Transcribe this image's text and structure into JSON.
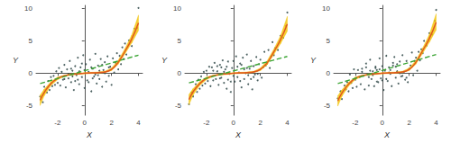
{
  "chart_data": [
    {
      "type": "scatter",
      "xlabel": "X",
      "ylabel": "Y",
      "xlim": [
        -3.6,
        4.3
      ],
      "ylim": [
        -6.5,
        10.5
      ],
      "xticks": [
        -2,
        0,
        2,
        4
      ],
      "yticks": [
        -5,
        0,
        5,
        10
      ],
      "series": [
        {
          "type": "scatter",
          "color": "#2e4747",
          "marker": "circle",
          "x": [
            -3.3,
            -3.1,
            -3.0,
            -2.8,
            -2.7,
            -2.6,
            -2.5,
            -2.4,
            -2.3,
            -2.2,
            -2.1,
            -2.0,
            -1.9,
            -1.8,
            -1.7,
            -1.6,
            -1.5,
            -1.4,
            -1.3,
            -1.2,
            -1.1,
            -1.0,
            -0.9,
            -0.8,
            -0.7,
            -0.6,
            -0.5,
            -0.4,
            -0.3,
            -0.2,
            -0.1,
            0.0,
            0.1,
            0.2,
            0.3,
            0.4,
            0.5,
            0.6,
            0.7,
            0.8,
            0.9,
            1.0,
            1.1,
            1.2,
            1.3,
            1.4,
            1.5,
            1.6,
            1.7,
            1.8,
            1.9,
            2.0,
            2.1,
            2.2,
            2.3,
            2.4,
            2.5,
            2.6,
            2.7,
            2.8,
            2.9,
            3.0,
            3.1,
            3.3,
            3.5,
            3.7,
            3.9,
            4.0,
            -1.5,
            -1.0,
            -0.5,
            0.0,
            0.5,
            1.0,
            1.5,
            -1.2,
            -0.7,
            -0.2,
            0.3,
            0.8,
            1.3,
            1.8,
            -0.9,
            -0.4,
            0.6,
            1.1
          ],
          "values": [
            -3.6,
            -4.5,
            -2.1,
            -3.0,
            -1.2,
            -2.6,
            -0.6,
            -2.0,
            -0.4,
            -1.8,
            0.3,
            -1.5,
            0.8,
            -1.9,
            0.2,
            -1.0,
            1.3,
            -2.2,
            0.6,
            -0.8,
            1.9,
            -1.4,
            0.4,
            -2.6,
            1.1,
            -0.3,
            2.4,
            -1.7,
            0.9,
            -0.6,
            2.8,
            -2.3,
            1.4,
            -1.1,
            0.2,
            2.1,
            -2.8,
            0.7,
            -0.5,
            3.0,
            -1.6,
            1.2,
            -0.9,
            2.2,
            -2.1,
            0.5,
            1.7,
            -1.3,
            2.6,
            -0.4,
            1.0,
            -1.8,
            2.3,
            0.1,
            1.6,
            3.1,
            0.6,
            2.7,
            1.4,
            4.0,
            2.2,
            4.6,
            2.9,
            5.1,
            4.2,
            6.9,
            7.0,
            10.1,
            -0.9,
            0.7,
            -1.0,
            0.5,
            0.9,
            -0.3,
            0.0,
            -0.1,
            -1.2,
            1.5,
            -1.4,
            -0.2,
            1.3,
            0.9,
            -0.5,
            0.3,
            -0.8,
            0.4
          ]
        },
        {
          "type": "band",
          "color": "#f2c200",
          "x": [
            -3.3,
            -3.0,
            -2.5,
            -2.0,
            -1.5,
            -1.0,
            -0.5,
            0.0,
            0.5,
            1.0,
            1.5,
            2.0,
            2.5,
            3.0,
            3.5,
            4.0
          ],
          "lower": [
            -5.0,
            -3.5,
            -1.9,
            -1.0,
            -0.5,
            -0.3,
            -0.2,
            -0.1,
            -0.05,
            0.0,
            0.1,
            0.4,
            1.4,
            3.0,
            4.7,
            6.6
          ],
          "upper": [
            -3.4,
            -2.5,
            -1.3,
            -0.6,
            -0.3,
            -0.1,
            0.0,
            0.1,
            0.15,
            0.2,
            0.3,
            0.8,
            2.0,
            3.8,
            5.9,
            9.0
          ]
        },
        {
          "type": "line",
          "color": "#e0531f",
          "line_style": "solid",
          "x": [
            -3.3,
            -3.0,
            -2.5,
            -2.0,
            -1.5,
            -1.0,
            -0.5,
            0.0,
            0.5,
            1.0,
            1.5,
            2.0,
            2.5,
            3.0,
            3.5,
            4.0
          ],
          "values": [
            -4.2,
            -3.0,
            -1.6,
            -0.8,
            -0.4,
            -0.2,
            -0.1,
            0.0,
            0.05,
            0.1,
            0.2,
            0.6,
            1.7,
            3.4,
            5.3,
            7.8
          ]
        },
        {
          "type": "line",
          "color": "#3ca535",
          "line_style": "dashed",
          "x": [
            -3.3,
            4.0
          ],
          "values": [
            -1.6,
            2.8
          ]
        }
      ]
    },
    {
      "type": "scatter",
      "xlabel": "X",
      "ylabel": "Y",
      "xlim": [
        -3.6,
        4.3
      ],
      "ylim": [
        -6.5,
        10.5
      ],
      "xticks": [
        -2,
        0,
        2,
        4
      ],
      "yticks": [
        -5,
        0,
        5,
        10
      ],
      "series": [
        {
          "type": "scatter",
          "color": "#2e4747",
          "marker": "circle",
          "x": [
            -3.3,
            -3.1,
            -3.0,
            -2.8,
            -2.7,
            -2.6,
            -2.5,
            -2.4,
            -2.3,
            -2.2,
            -2.1,
            -2.0,
            -1.9,
            -1.8,
            -1.7,
            -1.6,
            -1.5,
            -1.4,
            -1.3,
            -1.2,
            -1.1,
            -1.0,
            -0.9,
            -0.8,
            -0.7,
            -0.6,
            -0.5,
            -0.4,
            -0.3,
            -0.2,
            -0.1,
            0.0,
            0.1,
            0.2,
            0.3,
            0.4,
            0.5,
            0.6,
            0.7,
            0.8,
            0.9,
            1.0,
            1.1,
            1.2,
            1.3,
            1.4,
            1.5,
            1.6,
            1.7,
            1.8,
            1.9,
            2.0,
            2.1,
            2.2,
            2.3,
            2.4,
            2.5,
            2.6,
            2.7,
            2.8,
            2.9,
            3.0,
            3.1,
            3.3,
            3.5,
            3.7,
            3.9,
            4.0,
            -1.5,
            -1.0,
            -0.5,
            0.0,
            0.5,
            1.0,
            1.5,
            -1.2,
            -0.7,
            -0.2,
            0.3,
            0.8,
            1.3,
            1.8,
            -0.9,
            -0.4,
            0.6,
            1.1
          ],
          "values": [
            -4.8,
            -3.0,
            -3.6,
            -1.7,
            -2.9,
            -1.0,
            -2.4,
            -0.5,
            -1.9,
            0.2,
            -1.6,
            0.4,
            -1.2,
            1.0,
            -2.0,
            0.9,
            -1.1,
            1.6,
            -0.9,
            0.3,
            -1.8,
            1.3,
            -0.7,
            2.0,
            -1.5,
            0.6,
            -2.4,
            1.8,
            -0.1,
            -2.9,
            0.8,
            1.9,
            -1.3,
            2.6,
            -0.6,
            0.1,
            1.5,
            -2.2,
            2.4,
            -0.9,
            0.0,
            2.9,
            -1.7,
            0.7,
            1.9,
            -2.5,
            1.1,
            -0.2,
            2.5,
            -1.1,
            1.4,
            2.1,
            -0.7,
            0.9,
            3.3,
            1.2,
            1.5,
            3.6,
            0.8,
            2.6,
            4.8,
            2.8,
            3.9,
            3.6,
            5.8,
            5.5,
            7.3,
            9.4,
            0.4,
            -0.8,
            1.0,
            -0.4,
            -1.2,
            0.8,
            -0.6,
            1.1,
            0.2,
            -1.3,
            1.0,
            0.6,
            -0.9,
            -0.1,
            0.9,
            -1.0,
            1.3,
            -0.3
          ]
        },
        {
          "type": "band",
          "color": "#f2c200",
          "x": [
            -3.3,
            -3.0,
            -2.5,
            -2.0,
            -1.5,
            -1.0,
            -0.5,
            0.0,
            0.5,
            1.0,
            1.5,
            2.0,
            2.5,
            3.0,
            3.5,
            4.0
          ],
          "lower": [
            -4.9,
            -3.4,
            -1.9,
            -1.0,
            -0.5,
            -0.3,
            -0.2,
            -0.1,
            -0.05,
            0.0,
            0.1,
            0.4,
            1.3,
            2.9,
            4.6,
            6.5
          ],
          "upper": [
            -3.3,
            -2.4,
            -1.3,
            -0.6,
            -0.3,
            -0.1,
            0.0,
            0.1,
            0.15,
            0.2,
            0.3,
            0.8,
            1.9,
            3.7,
            5.8,
            8.8
          ]
        },
        {
          "type": "line",
          "color": "#e0531f",
          "line_style": "solid",
          "x": [
            -3.3,
            -3.0,
            -2.5,
            -2.0,
            -1.5,
            -1.0,
            -0.5,
            0.0,
            0.5,
            1.0,
            1.5,
            2.0,
            2.5,
            3.0,
            3.5,
            4.0
          ],
          "values": [
            -4.1,
            -2.9,
            -1.6,
            -0.8,
            -0.4,
            -0.2,
            -0.1,
            0.0,
            0.05,
            0.1,
            0.2,
            0.6,
            1.6,
            3.3,
            5.2,
            7.6
          ]
        },
        {
          "type": "line",
          "color": "#3ca535",
          "line_style": "dashed",
          "x": [
            -3.3,
            4.0
          ],
          "values": [
            -1.5,
            2.6
          ]
        }
      ]
    },
    {
      "type": "scatter",
      "xlabel": "X",
      "ylabel": "Y",
      "xlim": [
        -3.6,
        4.3
      ],
      "ylim": [
        -6.5,
        10.5
      ],
      "xticks": [
        -2,
        0,
        2,
        4
      ],
      "yticks": [
        -5,
        0,
        5,
        10
      ],
      "series": [
        {
          "type": "scatter",
          "color": "#2e4747",
          "marker": "circle",
          "x": [
            -3.3,
            -3.1,
            -3.0,
            -2.8,
            -2.7,
            -2.6,
            -2.5,
            -2.4,
            -2.3,
            -2.2,
            -2.1,
            -2.0,
            -1.9,
            -1.8,
            -1.7,
            -1.6,
            -1.5,
            -1.4,
            -1.3,
            -1.2,
            -1.1,
            -1.0,
            -0.9,
            -0.8,
            -0.7,
            -0.6,
            -0.5,
            -0.4,
            -0.3,
            -0.2,
            -0.1,
            0.0,
            0.1,
            0.2,
            0.3,
            0.4,
            0.5,
            0.6,
            0.7,
            0.8,
            0.9,
            1.0,
            1.1,
            1.2,
            1.3,
            1.4,
            1.5,
            1.6,
            1.7,
            1.8,
            1.9,
            2.0,
            2.1,
            2.2,
            2.3,
            2.4,
            2.5,
            2.6,
            2.7,
            2.8,
            2.9,
            3.0,
            3.1,
            3.3,
            3.5,
            3.7,
            3.9,
            4.0,
            -1.5,
            -1.0,
            -0.5,
            0.0,
            0.5,
            1.0,
            1.5,
            -1.2,
            -0.7,
            -0.2,
            0.3,
            0.8,
            1.3,
            1.8,
            -0.9,
            -0.4,
            0.6,
            1.1
          ],
          "values": [
            -3.9,
            -2.8,
            -4.0,
            -1.9,
            -2.5,
            -1.4,
            -2.8,
            -0.2,
            -1.5,
            -2.3,
            0.6,
            -1.0,
            -2.1,
            0.5,
            -0.6,
            -1.7,
            0.7,
            -0.4,
            -2.5,
            1.5,
            -0.2,
            -1.9,
            2.1,
            -0.9,
            0.3,
            -2.0,
            1.0,
            0.5,
            -1.4,
            2.3,
            -0.8,
            1.1,
            -2.6,
            0.4,
            2.7,
            -1.2,
            0.9,
            -0.1,
            -2.0,
            1.6,
            2.5,
            -0.7,
            0.3,
            -1.6,
            1.8,
            -0.5,
            2.8,
            0.2,
            -1.0,
            1.9,
            -1.4,
            0.7,
            1.2,
            3.2,
            -0.3,
            1.9,
            2.4,
            0.4,
            3.3,
            2.0,
            3.7,
            3.1,
            5.0,
            4.3,
            6.2,
            6.0,
            8.1,
            9.8,
            0.2,
            -0.6,
            0.8,
            -1.1,
            0.1,
            1.0,
            -0.4,
            0.9,
            -0.3,
            0.6,
            -0.9,
            1.2,
            0.0,
            -0.7,
            0.4,
            -1.3,
            0.5,
            1.4
          ]
        },
        {
          "type": "band",
          "color": "#f2c200",
          "x": [
            -3.3,
            -3.0,
            -2.5,
            -2.0,
            -1.5,
            -1.0,
            -0.5,
            0.0,
            0.5,
            1.0,
            1.5,
            2.0,
            2.5,
            3.0,
            3.5,
            4.0
          ],
          "lower": [
            -5.1,
            -3.6,
            -2.0,
            -1.0,
            -0.5,
            -0.3,
            -0.2,
            -0.1,
            -0.05,
            0.0,
            0.1,
            0.4,
            1.4,
            3.1,
            4.8,
            6.7
          ],
          "upper": [
            -3.5,
            -2.6,
            -1.4,
            -0.6,
            -0.3,
            -0.1,
            0.0,
            0.1,
            0.15,
            0.2,
            0.3,
            0.8,
            2.0,
            3.9,
            6.0,
            9.2
          ]
        },
        {
          "type": "line",
          "color": "#e0531f",
          "line_style": "solid",
          "x": [
            -3.3,
            -3.0,
            -2.5,
            -2.0,
            -1.5,
            -1.0,
            -0.5,
            0.0,
            0.5,
            1.0,
            1.5,
            2.0,
            2.5,
            3.0,
            3.5,
            4.0
          ],
          "values": [
            -4.3,
            -3.1,
            -1.7,
            -0.8,
            -0.4,
            -0.2,
            -0.1,
            0.0,
            0.05,
            0.1,
            0.2,
            0.6,
            1.7,
            3.5,
            5.4,
            7.9
          ]
        },
        {
          "type": "line",
          "color": "#3ca535",
          "line_style": "dashed",
          "x": [
            -3.3,
            4.0
          ],
          "values": [
            -1.6,
            2.9
          ]
        }
      ]
    }
  ]
}
